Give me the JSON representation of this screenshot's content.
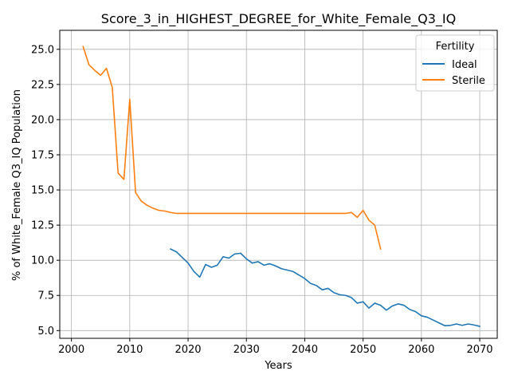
{
  "chart_data": {
    "type": "line",
    "title": "Score_3_in_HIGHEST_DEGREE_for_White_Female_Q3_IQ",
    "xlabel": "Years",
    "ylabel": "% of White_Female Q3_IQ Population",
    "xlim": [
      1998,
      2073
    ],
    "ylim": [
      4.45,
      26.35
    ],
    "xticks": [
      2000,
      2010,
      2020,
      2030,
      2040,
      2050,
      2060,
      2070
    ],
    "xtick_labels": [
      "2000",
      "2010",
      "2020",
      "2030",
      "2040",
      "2050",
      "2060",
      "2070"
    ],
    "yticks": [
      5.0,
      7.5,
      10.0,
      12.5,
      15.0,
      17.5,
      20.0,
      22.5,
      25.0
    ],
    "ytick_labels": [
      "5.0",
      "7.5",
      "10.0",
      "12.5",
      "15.0",
      "17.5",
      "20.0",
      "22.5",
      "25.0"
    ],
    "grid": true,
    "legend": {
      "title": "Fertility",
      "position": "top-right"
    },
    "series": [
      {
        "name": "Ideal",
        "color": "#1f77b4",
        "x": [
          2017,
          2018,
          2019,
          2020,
          2021,
          2022,
          2023,
          2024,
          2025,
          2026,
          2027,
          2028,
          2029,
          2030,
          2031,
          2032,
          2033,
          2034,
          2035,
          2036,
          2037,
          2038,
          2039,
          2040,
          2041,
          2042,
          2043,
          2044,
          2045,
          2046,
          2047,
          2048,
          2049,
          2050,
          2051,
          2052,
          2053,
          2054,
          2055,
          2056,
          2057,
          2058,
          2059,
          2060,
          2061,
          2062,
          2063,
          2064,
          2065,
          2066,
          2067,
          2068,
          2069,
          2070
        ],
        "y": [
          10.8,
          10.6,
          10.2,
          9.8,
          9.2,
          8.8,
          9.7,
          9.5,
          9.65,
          10.25,
          10.15,
          10.45,
          10.5,
          10.1,
          9.8,
          9.9,
          9.65,
          9.75,
          9.6,
          9.4,
          9.3,
          9.2,
          8.95,
          8.7,
          8.35,
          8.2,
          7.9,
          8.0,
          7.7,
          7.55,
          7.5,
          7.35,
          6.95,
          7.05,
          6.6,
          6.95,
          6.8,
          6.45,
          6.75,
          6.9,
          6.8,
          6.5,
          6.35,
          6.05,
          5.95,
          5.75,
          5.55,
          5.35,
          5.37,
          5.47,
          5.37,
          5.47,
          5.4,
          5.3
        ]
      },
      {
        "name": "Sterile",
        "color": "#ff7f0e",
        "x": [
          2002,
          2003,
          2004,
          2005,
          2006,
          2007,
          2008,
          2009,
          2010,
          2011,
          2012,
          2013,
          2014,
          2015,
          2016,
          2017,
          2018,
          2019,
          2020,
          2021,
          2022,
          2023,
          2024,
          2025,
          2026,
          2027,
          2028,
          2029,
          2030,
          2031,
          2032,
          2033,
          2034,
          2035,
          2036,
          2037,
          2038,
          2039,
          2040,
          2041,
          2042,
          2043,
          2044,
          2045,
          2046,
          2047,
          2048,
          2049,
          2050,
          2051,
          2052,
          2053
        ],
        "y": [
          25.2,
          23.9,
          23.5,
          23.15,
          23.65,
          22.3,
          16.2,
          15.75,
          21.45,
          14.8,
          14.2,
          13.9,
          13.7,
          13.55,
          13.5,
          13.4,
          13.33,
          13.33,
          13.33,
          13.33,
          13.33,
          13.33,
          13.33,
          13.33,
          13.33,
          13.33,
          13.33,
          13.33,
          13.33,
          13.33,
          13.33,
          13.33,
          13.33,
          13.33,
          13.33,
          13.33,
          13.33,
          13.33,
          13.33,
          13.33,
          13.33,
          13.33,
          13.33,
          13.33,
          13.33,
          13.33,
          13.4,
          13.05,
          13.55,
          12.85,
          12.5,
          10.8
        ]
      }
    ]
  }
}
